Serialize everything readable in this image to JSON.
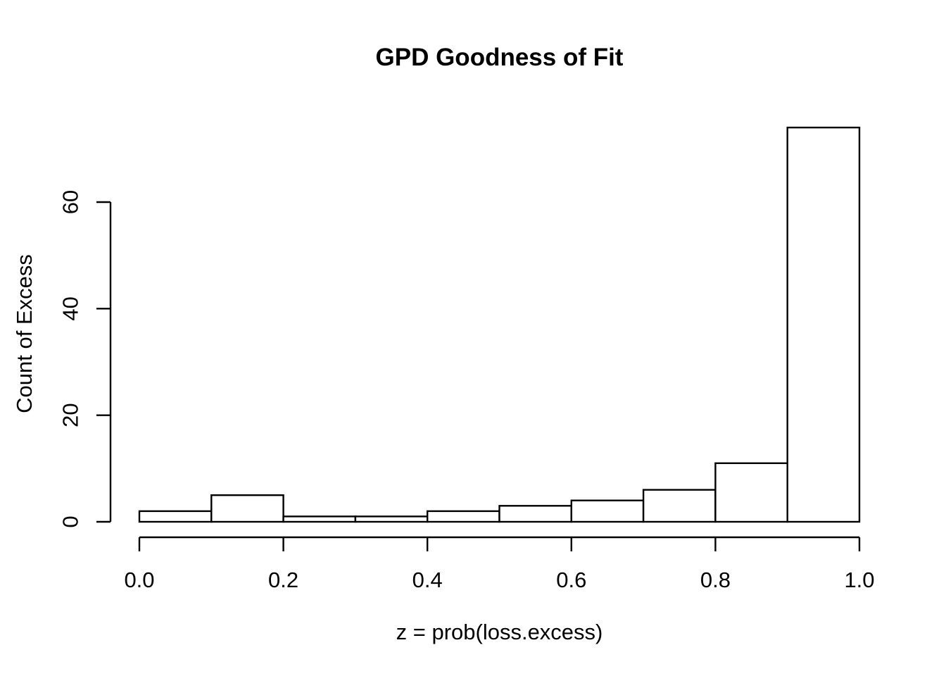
{
  "figure": {
    "background_color": "#ffffff",
    "foreground_color": "#000000"
  },
  "chart_data": {
    "type": "bar",
    "subtype": "histogram",
    "title": "GPD Goodness of Fit",
    "xlabel": "z = prob(loss.excess)",
    "ylabel": "Count of Excess",
    "bin_edges": [
      0.0,
      0.1,
      0.2,
      0.3,
      0.4,
      0.5,
      0.6,
      0.7,
      0.8,
      0.9,
      1.0
    ],
    "categories": [
      "0.0-0.1",
      "0.1-0.2",
      "0.2-0.3",
      "0.3-0.4",
      "0.4-0.5",
      "0.5-0.6",
      "0.6-0.7",
      "0.7-0.8",
      "0.8-0.9",
      "0.9-1.0"
    ],
    "values": [
      2,
      5,
      1,
      1,
      2,
      3,
      4,
      6,
      11,
      74
    ],
    "x_tick_labels": [
      "0.0",
      "0.2",
      "0.4",
      "0.6",
      "0.8",
      "1.0"
    ],
    "x_tick_values": [
      0.0,
      0.2,
      0.4,
      0.6,
      0.8,
      1.0
    ],
    "y_tick_labels": [
      "0",
      "20",
      "40",
      "60"
    ],
    "y_tick_values": [
      0,
      20,
      40,
      60
    ],
    "xlim": [
      0.0,
      1.0
    ],
    "ylim": [
      0,
      74
    ],
    "grid": false,
    "legend_position": "none",
    "bar_fill": "#ffffff",
    "bar_stroke": "#000000",
    "axis_color": "#000000"
  }
}
